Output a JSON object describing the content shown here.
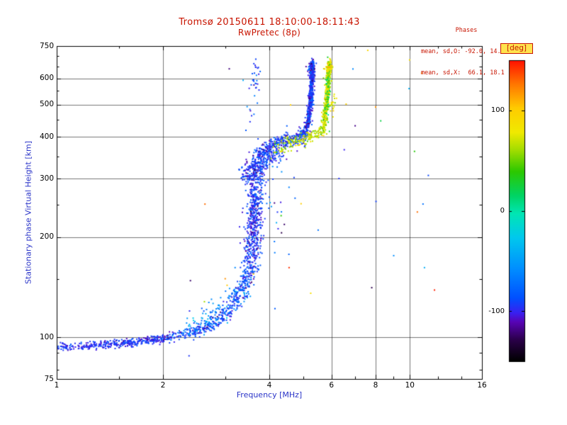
{
  "chart_data": {
    "type": "scatter",
    "title": "Tromsø 20150611 18:10:00-18:11:43",
    "subtitle": "RwPretec (8p)",
    "stats": {
      "heading": "Phases",
      "o_line": "mean, sd,O: -92.0, 14.8",
      "x_line": "mean, sd,X:  66.1, 18.1"
    },
    "xlabel": "Frequency [MHz]",
    "ylabel": "Stationary phase Virtual Height [km]",
    "x_scale": "log",
    "y_scale": "log",
    "x_range": [
      1,
      16
    ],
    "y_range": [
      75,
      750
    ],
    "grid": true,
    "x_ticks": [
      {
        "v": 1,
        "label": "1"
      },
      {
        "v": 2,
        "label": "2"
      },
      {
        "v": 4,
        "label": "4"
      },
      {
        "v": 6,
        "label": "6"
      },
      {
        "v": 8,
        "label": "8"
      },
      {
        "v": 10,
        "label": "10"
      },
      {
        "v": 16,
        "label": "16"
      }
    ],
    "x_minor": [
      1.5,
      3,
      5,
      7,
      9,
      12,
      14
    ],
    "y_ticks": [
      {
        "v": 750,
        "label": "750"
      },
      {
        "v": 600,
        "label": "600"
      },
      {
        "v": 500,
        "label": "500"
      },
      {
        "v": 400,
        "label": "400"
      },
      {
        "v": 300,
        "label": "300"
      },
      {
        "v": 200,
        "label": "200"
      },
      {
        "v": 100,
        "label": "100"
      },
      {
        "v": 75,
        "label": "75"
      }
    ],
    "y_minor": [
      80,
      90,
      150,
      250,
      350,
      450,
      550,
      650,
      700
    ],
    "colorbar": {
      "label": "[deg]",
      "min": -150,
      "max": 150,
      "ticks": [
        {
          "v": 100,
          "label": "100"
        },
        {
          "v": 0,
          "label": "0"
        },
        {
          "v": -100,
          "label": "-100"
        }
      ],
      "stops": [
        [
          0.0,
          "#000000"
        ],
        [
          0.07,
          "#2a0048"
        ],
        [
          0.13,
          "#5804b4"
        ],
        [
          0.16,
          "#3a20f0"
        ],
        [
          0.21,
          "#0050ff"
        ],
        [
          0.31,
          "#0090ff"
        ],
        [
          0.41,
          "#00c8ee"
        ],
        [
          0.49,
          "#00e6b4"
        ],
        [
          0.55,
          "#00d464"
        ],
        [
          0.63,
          "#2cc800"
        ],
        [
          0.7,
          "#a0dc00"
        ],
        [
          0.76,
          "#f0ea00"
        ],
        [
          0.84,
          "#ffcc00"
        ],
        [
          0.92,
          "#ff7700"
        ],
        [
          1.0,
          "#ff1000"
        ]
      ]
    },
    "colors": {
      "title": "#c81400",
      "axis_label": "#2b35c8",
      "tick_label": "#000000",
      "frame": "#000000"
    },
    "series": [
      {
        "name": "O-mode",
        "mean_phase_deg": -92.0,
        "sd_phase_deg": 14.8,
        "segments": [
          {
            "path": [
              [
                1.0,
                93.5
              ],
              [
                1.35,
                95
              ],
              [
                1.7,
                97
              ],
              [
                2.05,
                100
              ]
            ],
            "n": 380,
            "jf": 0.02,
            "jh": 0.014,
            "phase": -96,
            "sd": 9
          },
          {
            "path": [
              [
                2.05,
                100
              ],
              [
                2.45,
                104
              ],
              [
                2.8,
                110
              ]
            ],
            "n": 170,
            "jf": 0.02,
            "jh": 0.02,
            "phase": -86,
            "sd": 14
          },
          {
            "path": [
              [
                2.35,
                107
              ],
              [
                2.75,
                116
              ],
              [
                3.15,
                128
              ],
              [
                3.35,
                139
              ]
            ],
            "n": 130,
            "jf": 0.03,
            "jh": 0.045,
            "phase": -58,
            "sd": 16
          },
          {
            "path": [
              [
                2.8,
                110
              ],
              [
                3.1,
                122
              ],
              [
                3.35,
                140
              ],
              [
                3.5,
                158
              ]
            ],
            "n": 210,
            "jf": 0.02,
            "jh": 0.035,
            "phase": -88,
            "sd": 13
          },
          {
            "path": [
              [
                3.52,
                165
              ],
              [
                3.58,
                195
              ],
              [
                3.62,
                225
              ],
              [
                3.66,
                255
              ],
              [
                3.7,
                288
              ]
            ],
            "n": 520,
            "jf": 0.028,
            "jh": 0.09,
            "phase": -94,
            "sd": 12
          },
          {
            "path": [
              [
                3.5,
                300
              ],
              [
                3.62,
                320
              ],
              [
                3.74,
                338
              ]
            ],
            "n": 210,
            "jf": 0.033,
            "jh": 0.04,
            "phase": -95,
            "sd": 12
          },
          {
            "path": [
              [
                3.7,
                350
              ],
              [
                3.92,
                366
              ],
              [
                4.18,
                379
              ],
              [
                4.55,
                389
              ],
              [
                4.88,
                399
              ],
              [
                5.08,
                410
              ]
            ],
            "n": 330,
            "jf": 0.018,
            "jh": 0.026,
            "phase": -94,
            "sd": 12
          },
          {
            "path": [
              [
                3.76,
                331
              ],
              [
                4.02,
                346
              ],
              [
                4.32,
                356
              ]
            ],
            "n": 90,
            "jf": 0.025,
            "jh": 0.03,
            "phase": -92,
            "sd": 13
          },
          {
            "path": [
              [
                5.08,
                416
              ],
              [
                5.17,
                452
              ],
              [
                5.23,
                497
              ],
              [
                5.26,
                547
              ],
              [
                5.28,
                602
              ],
              [
                5.3,
                648
              ]
            ],
            "n": 490,
            "jf": 0.007,
            "jh": 0.034,
            "phase": -95,
            "sd": 12
          },
          {
            "path": [
              [
                5.2,
                633
              ],
              [
                5.33,
                652
              ]
            ],
            "n": 70,
            "jf": 0.012,
            "jh": 0.018,
            "phase": -95,
            "sd": 12
          },
          {
            "path": [
              [
                3.9,
                200
              ],
              [
                4.2,
                262
              ],
              [
                4.5,
                322
              ]
            ],
            "n": 32,
            "jf": 0.05,
            "jh": 0.22,
            "phase": -88,
            "sd": 22
          },
          {
            "path": [
              [
                3.55,
                445
              ],
              [
                3.62,
                525
              ],
              [
                3.67,
                612
              ],
              [
                3.72,
                672
              ]
            ],
            "n": 34,
            "jf": 0.016,
            "jh": 0.05,
            "phase": -90,
            "sd": 15
          }
        ]
      },
      {
        "name": "X-mode",
        "mean_phase_deg": 66.1,
        "sd_phase_deg": 18.1,
        "segments": [
          {
            "path": [
              [
                4.15,
                368
              ],
              [
                4.45,
                380
              ],
              [
                4.75,
                390
              ],
              [
                5.1,
                398
              ],
              [
                5.45,
                408
              ],
              [
                5.65,
                418
              ]
            ],
            "n": 150,
            "jf": 0.02,
            "jh": 0.024,
            "phase": 66,
            "sd": 15
          },
          {
            "path": [
              [
                5.68,
                425
              ],
              [
                5.76,
                466
              ],
              [
                5.82,
                516
              ],
              [
                5.86,
                566
              ],
              [
                5.89,
                616
              ],
              [
                5.92,
                650
              ]
            ],
            "n": 430,
            "jf": 0.007,
            "jh": 0.034,
            "phase": 72,
            "sd": 14
          },
          {
            "path": [
              [
                5.8,
                452
              ],
              [
                5.87,
                552
              ],
              [
                5.91,
                642
              ]
            ],
            "n": 55,
            "jf": 0.01,
            "jh": 0.06,
            "phase": 26,
            "sd": 18
          },
          {
            "path": [
              [
                5.85,
                640
              ],
              [
                5.96,
                655
              ]
            ],
            "n": 55,
            "jf": 0.012,
            "jh": 0.018,
            "phase": 76,
            "sd": 18
          },
          {
            "path": [
              [
                6.0,
                478
              ],
              [
                6.06,
                520
              ]
            ],
            "n": 22,
            "jf": 0.012,
            "jh": 0.04,
            "phase": 80,
            "sd": 15
          }
        ]
      }
    ],
    "outliers": {
      "points": [
        [
          2.37,
          88,
          -95
        ],
        [
          3.0,
          150,
          118
        ],
        [
          3.2,
          162,
          -60
        ],
        [
          4.55,
          162,
          142
        ],
        [
          4.32,
          232,
          38
        ],
        [
          4.7,
          302,
          -92
        ],
        [
          4.92,
          252,
          100
        ],
        [
          6.3,
          300,
          -96
        ],
        [
          6.52,
          366,
          -102
        ],
        [
          6.6,
          502,
          100
        ],
        [
          7.0,
          432,
          -118
        ],
        [
          8.0,
          492,
          118
        ],
        [
          8.27,
          447,
          22
        ],
        [
          8.02,
          256,
          -92
        ],
        [
          7.8,
          141,
          -128
        ],
        [
          9.0,
          176,
          -58
        ],
        [
          10.5,
          238,
          128
        ],
        [
          10.8,
          622,
          118
        ],
        [
          11.0,
          162,
          -42
        ],
        [
          7.6,
          728,
          95
        ],
        [
          4.15,
          122,
          -82
        ],
        [
          2.62,
          128,
          60
        ],
        [
          5.5,
          210,
          -70
        ],
        [
          6.9,
          640,
          -60
        ]
      ],
      "random_n": 14,
      "f_range": [
        2.3,
        12
      ],
      "h_range": [
        90,
        700
      ],
      "phase_range": [
        -150,
        150
      ]
    }
  }
}
